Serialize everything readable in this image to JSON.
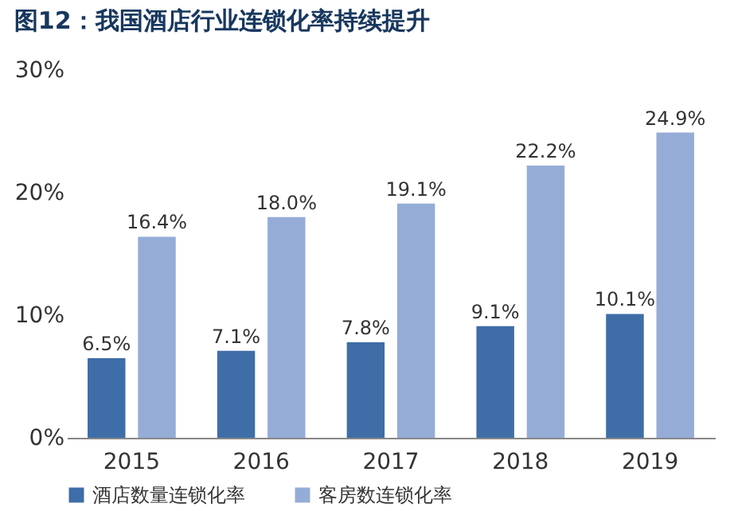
{
  "chart_data": {
    "type": "bar",
    "title": "图12：我国酒店行业连锁化率持续提升",
    "categories": [
      "2015",
      "2016",
      "2017",
      "2018",
      "2019"
    ],
    "series": [
      {
        "name": "酒店数量连锁化率",
        "color": "#3e6da8",
        "values": [
          6.5,
          7.1,
          7.8,
          9.1,
          10.1
        ],
        "value_labels": [
          "6.5%",
          "7.1%",
          "7.8%",
          "9.1%",
          "10.1%"
        ]
      },
      {
        "name": "客房数连锁化率",
        "color": "#95acd7",
        "values": [
          16.4,
          18.0,
          19.1,
          22.2,
          24.9
        ],
        "value_labels": [
          "16.4%",
          "18.0%",
          "19.1%",
          "22.2%",
          "24.9%"
        ]
      }
    ],
    "ylim": [
      0,
      30
    ],
    "yticks": [
      {
        "value": 0,
        "label": "0%"
      },
      {
        "value": 10,
        "label": "10%"
      },
      {
        "value": 20,
        "label": "20%"
      },
      {
        "value": 30,
        "label": "30%"
      }
    ],
    "grid": false,
    "legend": "bottom"
  }
}
